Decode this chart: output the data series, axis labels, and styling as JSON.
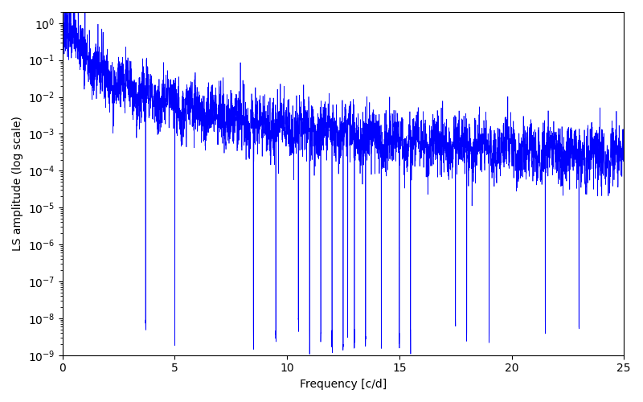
{
  "xlabel": "Frequency [c/d]",
  "ylabel": "LS amplitude (log scale)",
  "line_color": "#0000ff",
  "xlim": [
    0,
    25
  ],
  "ylim": [
    1e-09,
    2
  ],
  "background_color": "#ffffff",
  "figsize": [
    8.0,
    5.0
  ],
  "dpi": 100,
  "seed": 7,
  "n_points": 5000,
  "freq_max": 25.0
}
